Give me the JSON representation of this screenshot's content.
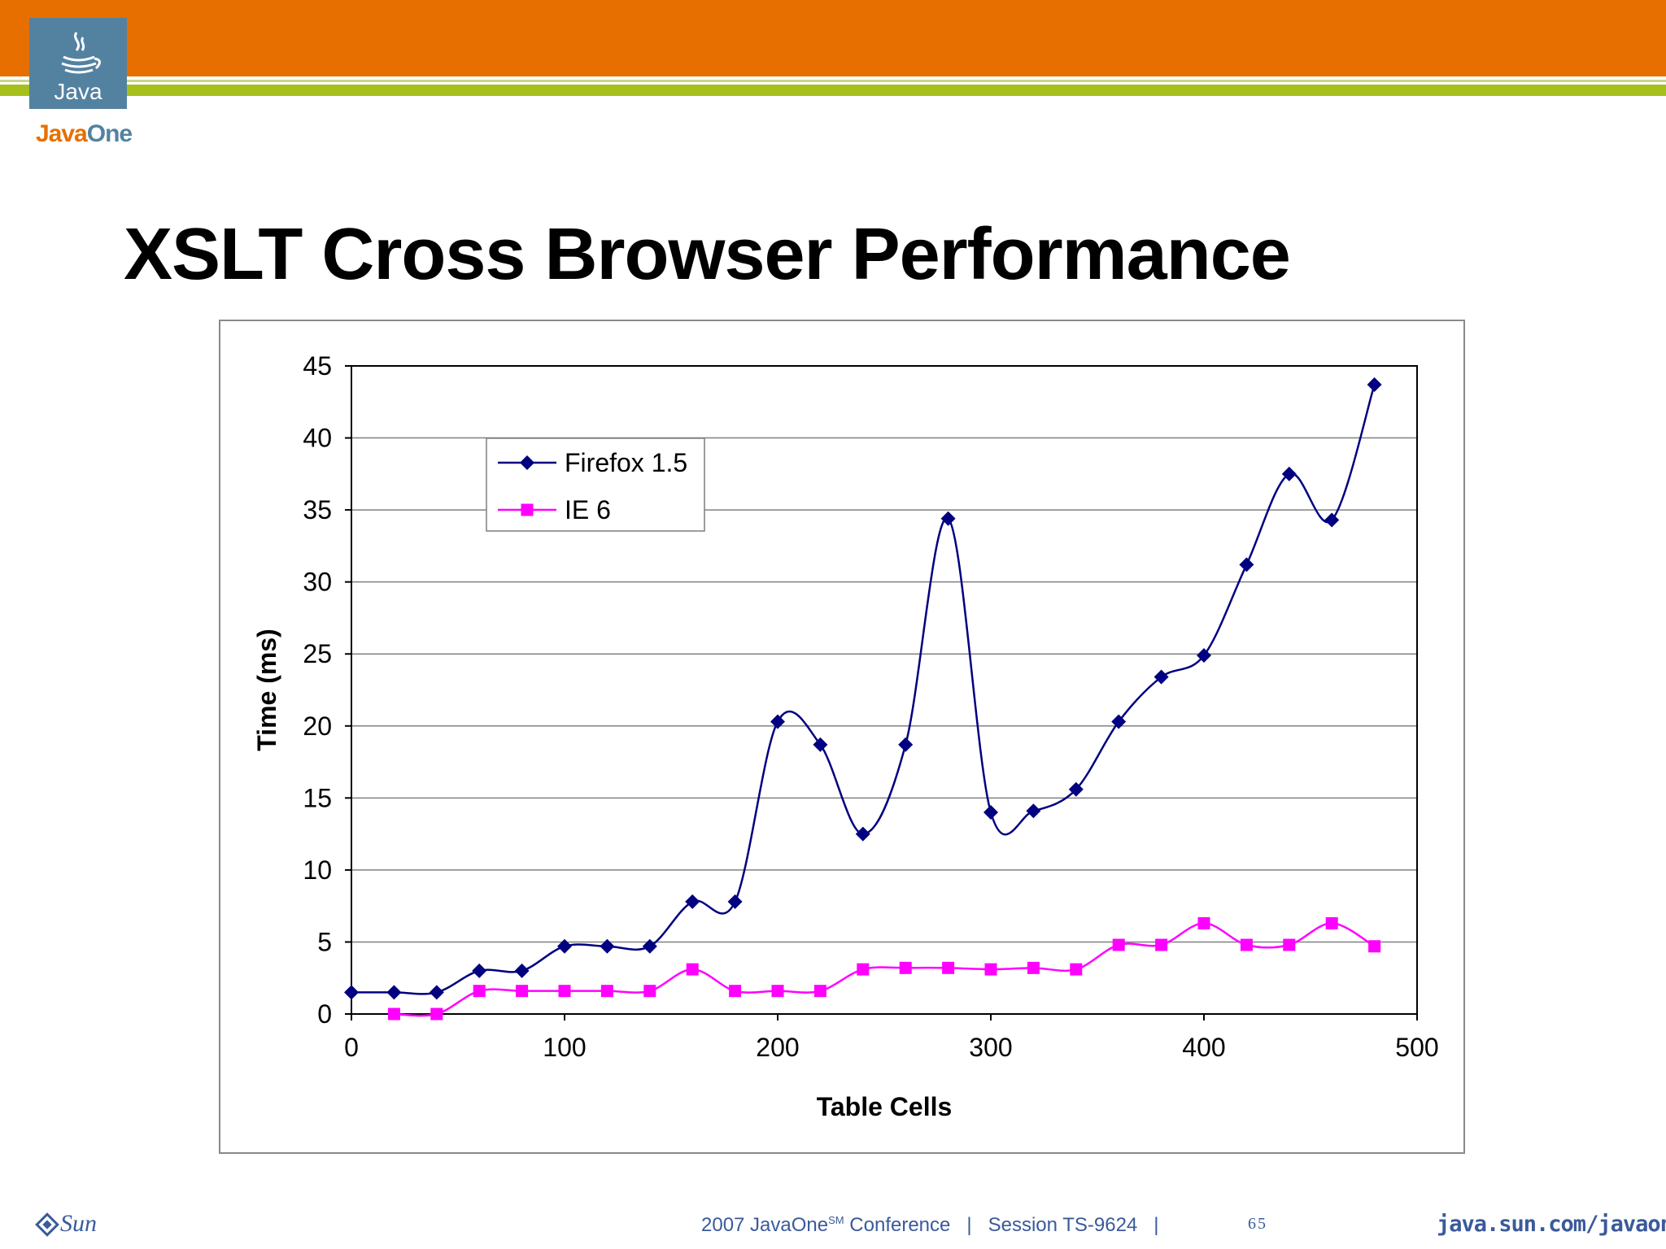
{
  "header": {
    "logo_text": "Java",
    "brand_part1": "Java",
    "brand_part2": "One"
  },
  "title": "XSLT Cross Browser Performance",
  "footer": {
    "conference_prefix": "2007 JavaOne",
    "conference_sup": "SM",
    "conference_rest": " Conference   |   Session TS-9624   |",
    "page_number": "65",
    "sun_text": "Sun",
    "url": "java.sun.com/javaone"
  },
  "colors": {
    "orange": "#e76f00",
    "green": "#a7bf1a",
    "firefox": "#000080",
    "ie": "#ff00ff"
  },
  "chart_data": {
    "type": "line",
    "xlabel": "Table Cells",
    "ylabel": "Time (ms)",
    "xlim": [
      0,
      500
    ],
    "ylim": [
      0,
      45
    ],
    "xticks": [
      0,
      100,
      200,
      300,
      400,
      500
    ],
    "yticks": [
      0,
      5,
      10,
      15,
      20,
      25,
      30,
      35,
      40,
      45
    ],
    "grid": "horizontal",
    "legend": "upper-left",
    "series": [
      {
        "name": "Firefox 1.5",
        "marker": "diamond",
        "color": "#000080",
        "x": [
          0,
          20,
          40,
          60,
          80,
          100,
          120,
          140,
          160,
          180,
          200,
          220,
          240,
          260,
          280,
          300,
          320,
          340,
          360,
          380,
          400,
          420,
          440,
          460,
          480
        ],
        "y": [
          1.5,
          1.5,
          1.5,
          3.0,
          3.0,
          4.7,
          4.7,
          4.7,
          7.8,
          7.8,
          20.3,
          18.7,
          12.5,
          18.7,
          34.4,
          14.0,
          14.1,
          15.6,
          20.3,
          23.4,
          24.9,
          31.2,
          37.5,
          34.3,
          43.7
        ]
      },
      {
        "name": "IE 6",
        "marker": "square",
        "color": "#ff00ff",
        "x": [
          20,
          40,
          60,
          80,
          100,
          120,
          140,
          160,
          180,
          200,
          220,
          240,
          260,
          280,
          300,
          320,
          340,
          360,
          380,
          400,
          420,
          440,
          460,
          480
        ],
        "y": [
          0.0,
          0.0,
          1.6,
          1.6,
          1.6,
          1.6,
          1.6,
          3.1,
          1.6,
          1.6,
          1.6,
          3.1,
          3.2,
          3.2,
          3.1,
          3.2,
          3.1,
          4.8,
          4.8,
          6.3,
          4.8,
          4.8,
          6.3,
          4.7
        ]
      }
    ]
  }
}
